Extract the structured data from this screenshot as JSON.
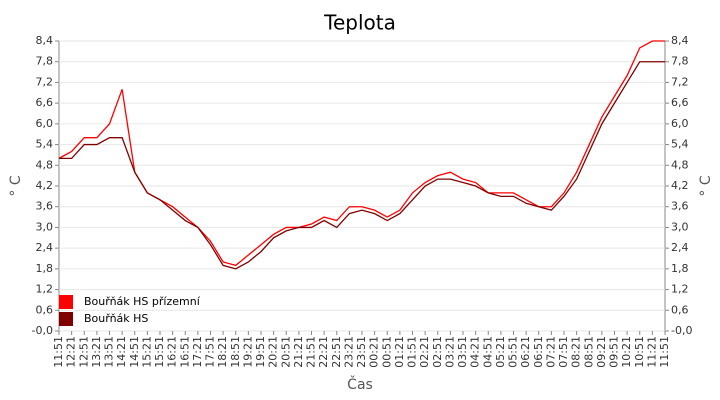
{
  "chart_data": {
    "type": "line",
    "title": "Teplota",
    "x_label": "Čas",
    "y_label": "° C",
    "y2_label": "° C",
    "categories": [
      "11:51",
      "12:21",
      "12:51",
      "13:21",
      "13:51",
      "14:21",
      "14:51",
      "15:21",
      "15:51",
      "16:21",
      "16:51",
      "17:21",
      "17:51",
      "18:21",
      "18:51",
      "19:21",
      "19:51",
      "20:21",
      "20:51",
      "21:21",
      "21:51",
      "22:21",
      "22:51",
      "23:21",
      "23:51",
      "00:21",
      "00:51",
      "01:21",
      "01:51",
      "02:21",
      "02:51",
      "03:21",
      "03:51",
      "04:21",
      "04:51",
      "05:21",
      "05:51",
      "06:21",
      "06:51",
      "07:21",
      "07:51",
      "08:21",
      "08:51",
      "09:21",
      "09:51",
      "10:21",
      "10:51",
      "11:21",
      "11:51"
    ],
    "series": [
      {
        "name": "Bouřňák HS přízemní",
        "color": "#ff0000",
        "values": [
          5.0,
          5.2,
          5.6,
          5.6,
          6.0,
          7.0,
          4.6,
          4.0,
          3.8,
          3.6,
          3.3,
          3.0,
          2.6,
          2.0,
          1.9,
          2.2,
          2.5,
          2.8,
          3.0,
          3.0,
          3.1,
          3.3,
          3.2,
          3.6,
          3.6,
          3.5,
          3.3,
          3.5,
          4.0,
          4.3,
          4.5,
          4.6,
          4.4,
          4.3,
          4.0,
          4.0,
          4.0,
          3.8,
          3.6,
          3.6,
          4.0,
          4.6,
          5.4,
          6.2,
          6.8,
          7.4,
          8.2,
          8.4,
          8.4
        ]
      },
      {
        "name": "Bouřňák HS",
        "color": "#800000",
        "values": [
          5.0,
          5.0,
          5.4,
          5.4,
          5.6,
          5.6,
          4.6,
          4.0,
          3.8,
          3.5,
          3.2,
          3.0,
          2.5,
          1.9,
          1.8,
          2.0,
          2.3,
          2.7,
          2.9,
          3.0,
          3.0,
          3.2,
          3.0,
          3.4,
          3.5,
          3.4,
          3.2,
          3.4,
          3.8,
          4.2,
          4.4,
          4.4,
          4.3,
          4.2,
          4.0,
          3.9,
          3.9,
          3.7,
          3.6,
          3.5,
          3.9,
          4.4,
          5.2,
          6.0,
          6.6,
          7.2,
          7.8,
          7.8,
          7.8
        ]
      }
    ],
    "ylim": [
      0,
      8.4
    ],
    "yticks": [
      {
        "value": 0,
        "label": "-0,0"
      },
      {
        "value": 0.6,
        "label": "0,6"
      },
      {
        "value": 1.2,
        "label": "1,2"
      },
      {
        "value": 1.8,
        "label": "1,8"
      },
      {
        "value": 2.4,
        "label": "2,4"
      },
      {
        "value": 3.0,
        "label": "3,0"
      },
      {
        "value": 3.6,
        "label": "3,6"
      },
      {
        "value": 4.2,
        "label": "4,2"
      },
      {
        "value": 4.8,
        "label": "4,8"
      },
      {
        "value": 5.4,
        "label": "5,4"
      },
      {
        "value": 6.0,
        "label": "6,0"
      },
      {
        "value": 6.6,
        "label": "6,6"
      },
      {
        "value": 7.2,
        "label": "7,2"
      },
      {
        "value": 7.8,
        "label": "7,8"
      },
      {
        "value": 8.4,
        "label": "8,4"
      }
    ],
    "grid": true,
    "legend": "lower-left"
  }
}
